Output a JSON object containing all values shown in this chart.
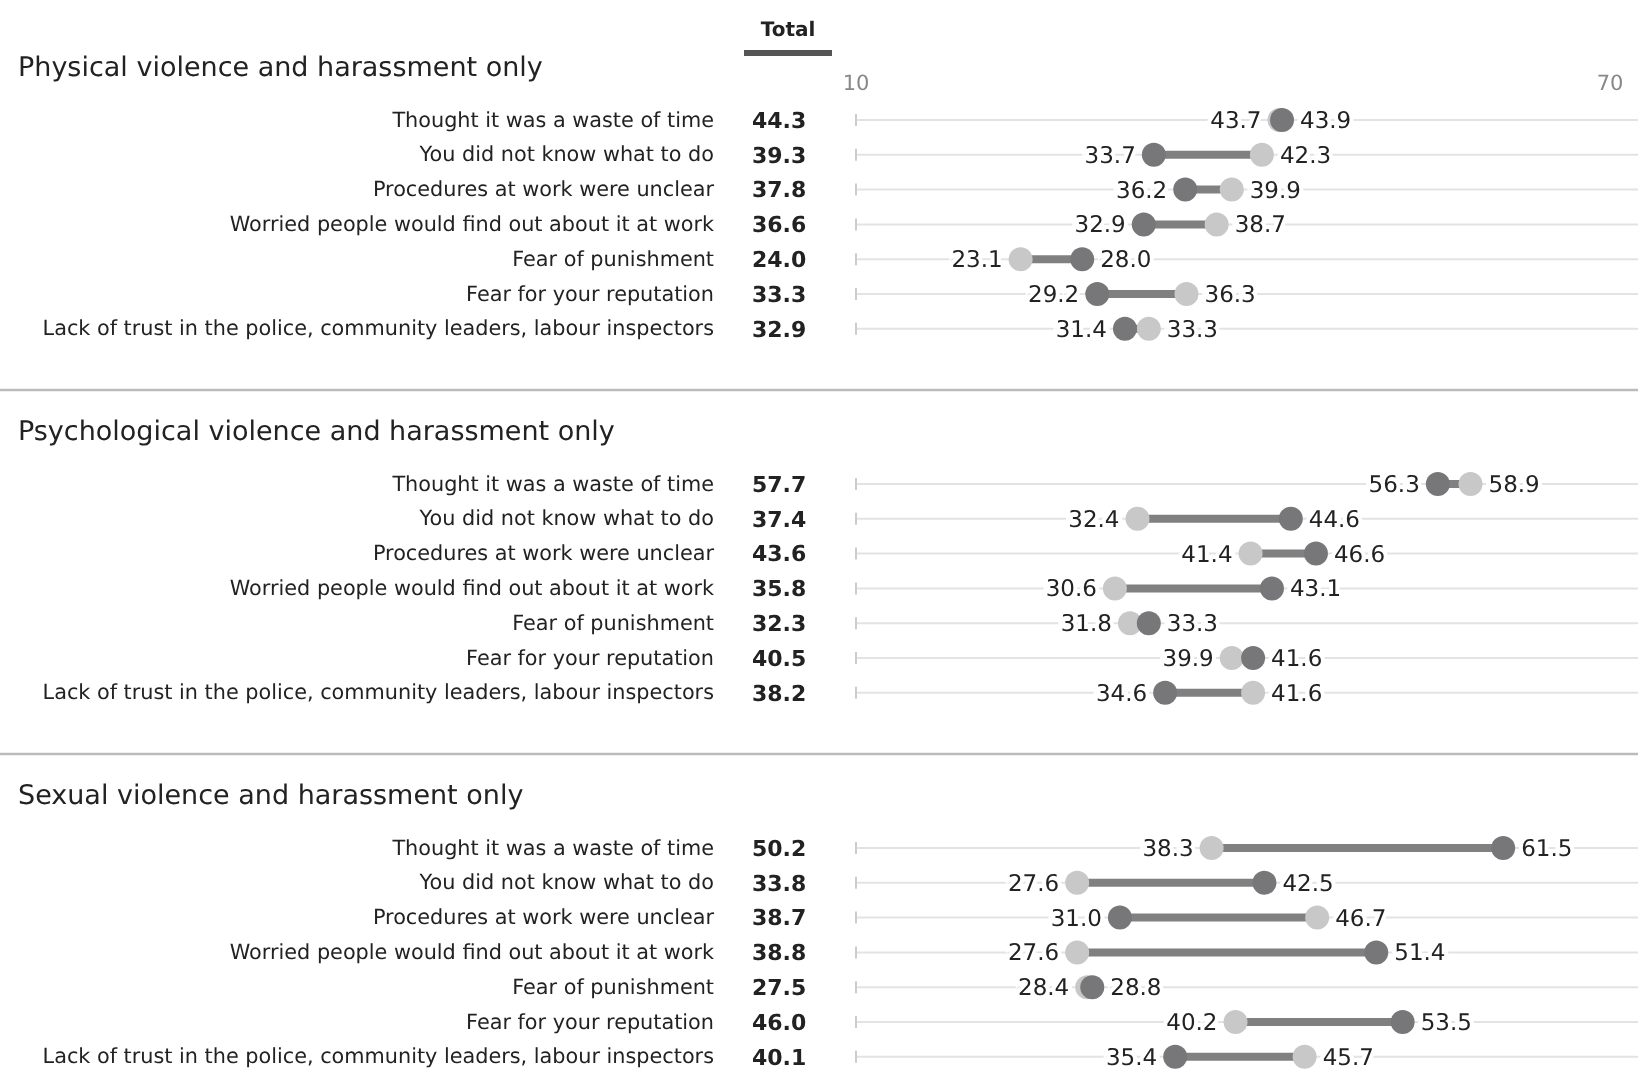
{
  "chart_data": [
    {
      "type": "scatter",
      "title": "Physical violence and harassment only",
      "orientation": "horizontal",
      "categories": [
        "Thought it was a waste of time",
        "You did not know what to do",
        "Procedures at work were unclear",
        "Worried people would find out about it at work",
        "Fear of punishment",
        "Fear for your reputation",
        "Lack of trust in the police, community leaders, labour inspectors"
      ],
      "series": [
        {
          "color": "#c8c8c8",
          "values": [
            43.7,
            42.3,
            39.9,
            38.7,
            23.1,
            36.3,
            33.3
          ],
          "value_labels": [
            "43.7",
            "42.3",
            "39.9",
            "38.7",
            "23.1",
            "36.3",
            "33.3"
          ]
        },
        {
          "color": "#77777a",
          "values": [
            43.9,
            33.7,
            36.2,
            32.9,
            28.0,
            29.2,
            31.4
          ],
          "value_labels": [
            "43.9",
            "33.7",
            "36.2",
            "32.9",
            "28.0",
            "29.2",
            "31.4"
          ]
        }
      ],
      "xlim": [
        10,
        70
      ],
      "xticks": [
        10,
        70
      ],
      "grid": "y",
      "marker": "circle",
      "annotations": [
        "Total",
        "44.3",
        "39.3",
        "37.8",
        "36.6",
        "24.0",
        "33.3",
        "32.9"
      ]
    },
    {
      "type": "scatter",
      "title": "Psychological violence and harassment only",
      "orientation": "horizontal",
      "categories": [
        "Thought it was a waste of time",
        "You did not know what to do",
        "Procedures at work were unclear",
        "Worried people would find out about it at work",
        "Fear of punishment",
        "Fear for your reputation",
        "Lack of trust in the police, community leaders, labour inspectors"
      ],
      "series": [
        {
          "color": "#c8c8c8",
          "values": [
            58.9,
            32.4,
            41.4,
            30.6,
            31.8,
            39.9,
            41.6
          ],
          "value_labels": [
            "58.9",
            "32.4",
            "41.4",
            "30.6",
            "31.8",
            "39.9",
            "41.6"
          ]
        },
        {
          "color": "#77777a",
          "values": [
            56.3,
            44.6,
            46.6,
            43.1,
            33.3,
            41.6,
            34.6
          ],
          "value_labels": [
            "56.3",
            "44.6",
            "46.6",
            "43.1",
            "33.3",
            "41.6",
            "34.6"
          ]
        }
      ],
      "xlim": [
        10,
        70
      ],
      "tick_labels": "y",
      "grid": "y",
      "marker": "circle",
      "annotations": [
        "57.7",
        "37.4",
        "43.6",
        "35.8",
        "32.3",
        "40.5",
        "38.2"
      ]
    },
    {
      "type": "scatter",
      "title": "Sexual violence and harassment only",
      "orientation": "horizontal",
      "categories": [
        "Thought it was a waste of time",
        "You did not know what to do",
        "Procedures at work were unclear",
        "Worried people would find out about it at work",
        "Fear of punishment",
        "Fear for your reputation",
        "Lack of trust in the police, community leaders, labour inspectors"
      ],
      "series": [
        {
          "color": "#c8c8c8",
          "values": [
            38.3,
            27.6,
            46.7,
            27.6,
            28.4,
            40.2,
            45.7
          ],
          "value_labels": [
            "38.3",
            "27.6",
            "46.7",
            "27.6",
            "28.4",
            "40.2",
            "45.7"
          ]
        },
        {
          "color": "#77777a",
          "values": [
            61.5,
            42.5,
            31.0,
            51.4,
            28.8,
            53.5,
            35.4
          ],
          "value_labels": [
            "61.5",
            "42.5",
            "31.0",
            "51.4",
            "28.8",
            "53.5",
            "35.4"
          ]
        }
      ],
      "xlim": [
        10,
        70
      ],
      "tick_labels": "y",
      "grid": "y",
      "marker": "circle",
      "annotations": [
        "50.2",
        "33.8",
        "38.7",
        "38.8",
        "27.5",
        "46.0",
        "40.1"
      ]
    }
  ]
}
